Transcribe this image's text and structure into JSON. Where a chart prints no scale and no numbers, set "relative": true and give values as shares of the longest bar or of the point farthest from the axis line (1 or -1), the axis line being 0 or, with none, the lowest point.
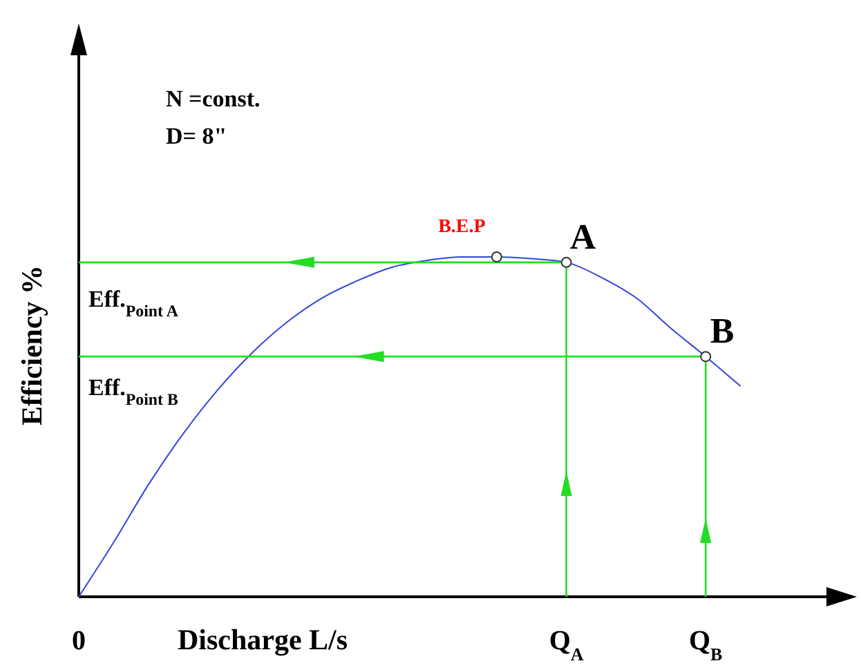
{
  "chart_data": {
    "type": "line",
    "relative": true,
    "xlabel": "Discharge L/s",
    "ylabel": "Efficiency %",
    "categories": [
      "0",
      null,
      null,
      null,
      null,
      null,
      null,
      null,
      null,
      null,
      null,
      null,
      null,
      null,
      "Q$_{A}$",
      null,
      null,
      null,
      "Q$_{B}$",
      null,
      null,
      null
    ],
    "series": [
      {
        "color": "#3344dd",
        "values": [
          0,
          0.16,
          0.33,
          0.48,
          0.61,
          0.72,
          0.81,
          0.88,
          0.93,
          0.97,
          0.99,
          1,
          1,
          0.995,
          0.984,
          0.94,
          0.88,
          0.79,
          0.707,
          0.62,
          null,
          null
        ]
      },
      {
        "type": "line",
        "color": "#22dd22",
        "x": [
          "Q$_{A}$",
          "Q$_{A}$",
          "0"
        ],
        "values": [
          0,
          0.984,
          0.984
        ]
      },
      {
        "type": "line",
        "color": "#22dd22",
        "x": [
          "Q$_{B}$",
          "Q$_{B}$",
          "0"
        ],
        "values": [
          0,
          0.707,
          0.707
        ]
      },
      {
        "type": "scatter",
        "color": "#333333",
        "marker": "circle",
        "values": [
          null,
          null,
          null,
          null,
          null,
          null,
          null,
          null,
          null,
          null,
          null,
          null,
          1,
          null,
          0.984,
          null,
          null,
          null,
          0.707,
          null,
          null,
          null
        ]
      }
    ],
    "annotations": [
      {
        "text": "B.E.P",
        "y": 1
      },
      {
        "text": "A",
        "x": "Q$_{A}$",
        "y": 0.984
      },
      {
        "text": "B",
        "x": "Q$_{B}$",
        "y": 0.707
      },
      "Eff.$_{Point A}$",
      "Eff.$_{Point B}$",
      "N =const.",
      "D= 8\""
    ]
  }
}
